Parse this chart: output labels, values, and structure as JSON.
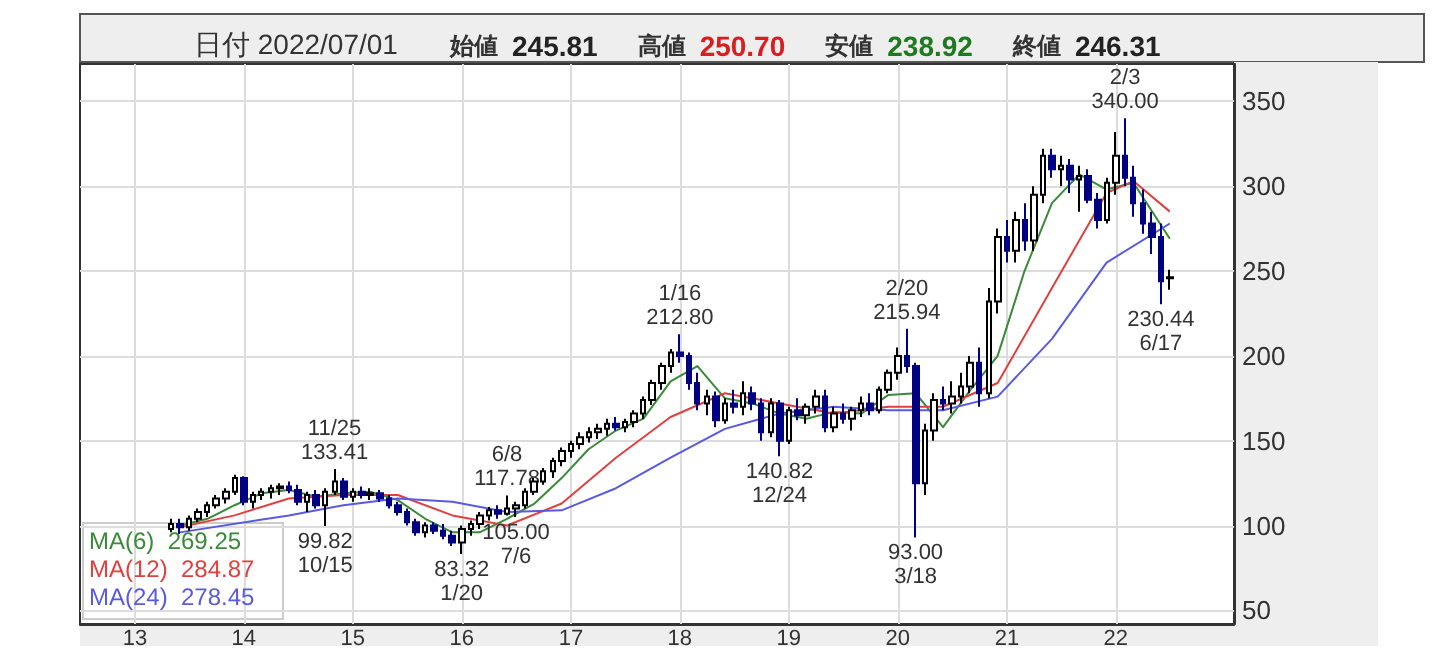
{
  "chart_data": {
    "type": "candlestick",
    "title": "日付 2022/07/01",
    "annotations": [
      "始値 245.81",
      "高値 250.70",
      "安値 238.92",
      "終値 246.31",
      {
        "text": "11/25\n133.41",
        "x": "2014-11",
        "y": 133.41
      },
      {
        "text": "99.82\n10/15",
        "x": "2014-10",
        "y": 99.82
      },
      {
        "text": "83.32\n1/20",
        "x": "2016-01",
        "y": 83.32
      },
      {
        "text": "6/8\n117.78",
        "x": "2016-06",
        "y": 117.78
      },
      {
        "text": "105.00\n7/6",
        "x": "2016-07",
        "y": 105.0
      },
      {
        "text": "1/16\n212.80",
        "x": "2018-01",
        "y": 212.8
      },
      {
        "text": "140.82\n12/24",
        "x": "2018-12",
        "y": 140.82
      },
      {
        "text": "2/20\n215.94",
        "x": "2020-02",
        "y": 215.94
      },
      {
        "text": "93.00\n3/18",
        "x": "2020-03",
        "y": 93.0
      },
      {
        "text": "2/3\n340.00",
        "x": "2022-02",
        "y": 340.0
      },
      {
        "text": "230.44\n6/17",
        "x": "2022-06",
        "y": 230.44
      }
    ],
    "x": [
      "2013-05",
      "2013-06",
      "2013-07",
      "2013-08",
      "2013-09",
      "2013-10",
      "2013-11",
      "2013-12",
      "2014-01",
      "2014-02",
      "2014-03",
      "2014-04",
      "2014-05",
      "2014-06",
      "2014-07",
      "2014-08",
      "2014-09",
      "2014-10",
      "2014-11",
      "2014-12",
      "2015-01",
      "2015-02",
      "2015-03",
      "2015-04",
      "2015-05",
      "2015-06",
      "2015-07",
      "2015-08",
      "2015-09",
      "2015-10",
      "2015-11",
      "2015-12",
      "2016-01",
      "2016-02",
      "2016-03",
      "2016-04",
      "2016-05",
      "2016-06",
      "2016-07",
      "2016-08",
      "2016-09",
      "2016-10",
      "2016-11",
      "2016-12",
      "2017-01",
      "2017-02",
      "2017-03",
      "2017-04",
      "2017-05",
      "2017-06",
      "2017-07",
      "2017-08",
      "2017-09",
      "2017-10",
      "2017-11",
      "2017-12",
      "2018-01",
      "2018-02",
      "2018-03",
      "2018-04",
      "2018-05",
      "2018-06",
      "2018-07",
      "2018-08",
      "2018-09",
      "2018-10",
      "2018-11",
      "2018-12",
      "2019-01",
      "2019-02",
      "2019-03",
      "2019-04",
      "2019-05",
      "2019-06",
      "2019-07",
      "2019-08",
      "2019-09",
      "2019-10",
      "2019-11",
      "2019-12",
      "2020-01",
      "2020-02",
      "2020-03",
      "2020-04",
      "2020-05",
      "2020-06",
      "2020-07",
      "2020-08",
      "2020-09",
      "2020-10",
      "2020-11",
      "2020-12",
      "2021-01",
      "2021-02",
      "2021-03",
      "2021-04",
      "2021-05",
      "2021-06",
      "2021-07",
      "2021-08",
      "2021-09",
      "2021-10",
      "2021-11",
      "2021-12",
      "2022-01",
      "2022-02",
      "2022-03",
      "2022-04",
      "2022-05",
      "2022-06",
      "2022-07"
    ],
    "ohlc": [
      [
        98,
        104,
        96,
        101
      ],
      [
        101,
        104,
        95,
        99
      ],
      [
        99,
        106,
        97,
        104
      ],
      [
        104,
        110,
        102,
        108
      ],
      [
        108,
        114,
        105,
        112
      ],
      [
        112,
        118,
        110,
        116
      ],
      [
        116,
        122,
        113,
        120
      ],
      [
        120,
        130,
        118,
        128
      ],
      [
        128,
        129,
        112,
        114
      ],
      [
        114,
        120,
        110,
        118
      ],
      [
        118,
        122,
        115,
        120
      ],
      [
        120,
        124,
        116,
        122
      ],
      [
        122,
        125,
        118,
        123
      ],
      [
        123,
        126,
        119,
        121
      ],
      [
        121,
        124,
        112,
        114
      ],
      [
        114,
        120,
        108,
        118
      ],
      [
        118,
        121,
        110,
        112
      ],
      [
        112,
        122,
        99.82,
        120
      ],
      [
        120,
        133.41,
        118,
        126
      ],
      [
        126,
        128,
        115,
        117
      ],
      [
        117,
        122,
        114,
        120
      ],
      [
        120,
        123,
        116,
        118
      ],
      [
        118,
        122,
        115,
        119
      ],
      [
        119,
        121,
        114,
        116
      ],
      [
        116,
        118,
        110,
        112
      ],
      [
        112,
        114,
        106,
        108
      ],
      [
        108,
        110,
        100,
        102
      ],
      [
        102,
        104,
        94,
        96
      ],
      [
        96,
        102,
        93,
        100
      ],
      [
        100,
        102,
        95,
        97
      ],
      [
        97,
        101,
        92,
        94
      ],
      [
        94,
        97,
        88,
        90
      ],
      [
        90,
        100,
        83.32,
        98
      ],
      [
        98,
        103,
        94,
        101
      ],
      [
        101,
        108,
        98,
        106
      ],
      [
        106,
        111,
        103,
        109
      ],
      [
        109,
        112,
        104,
        107
      ],
      [
        107,
        117.78,
        106,
        110
      ],
      [
        110,
        114,
        105.0,
        112
      ],
      [
        112,
        122,
        110,
        120
      ],
      [
        120,
        128,
        118,
        126
      ],
      [
        126,
        134,
        124,
        132
      ],
      [
        132,
        140,
        128,
        138
      ],
      [
        138,
        146,
        135,
        144
      ],
      [
        144,
        150,
        140,
        148
      ],
      [
        148,
        155,
        145,
        152
      ],
      [
        152,
        158,
        149,
        155
      ],
      [
        155,
        160,
        151,
        157
      ],
      [
        157,
        163,
        153,
        160
      ],
      [
        160,
        164,
        156,
        158
      ],
      [
        158,
        163,
        155,
        161
      ],
      [
        161,
        168,
        158,
        166
      ],
      [
        166,
        176,
        163,
        174
      ],
      [
        174,
        186,
        171,
        184
      ],
      [
        184,
        196,
        180,
        194
      ],
      [
        194,
        204,
        190,
        202
      ],
      [
        202,
        212.8,
        196,
        200
      ],
      [
        200,
        202,
        180,
        184
      ],
      [
        184,
        190,
        168,
        172
      ],
      [
        172,
        180,
        165,
        176
      ],
      [
        176,
        179,
        158,
        162
      ],
      [
        162,
        175,
        160,
        172
      ],
      [
        172,
        180,
        166,
        170
      ],
      [
        170,
        185,
        165,
        178
      ],
      [
        178,
        182,
        168,
        172
      ],
      [
        172,
        175,
        150,
        155
      ],
      [
        155,
        175,
        152,
        172
      ],
      [
        172,
        174,
        140.82,
        150
      ],
      [
        150,
        170,
        148,
        168
      ],
      [
        168,
        175,
        162,
        165
      ],
      [
        165,
        172,
        160,
        170
      ],
      [
        170,
        180,
        166,
        176
      ],
      [
        176,
        180,
        155,
        158
      ],
      [
        158,
        170,
        155,
        166
      ],
      [
        166,
        172,
        160,
        163
      ],
      [
        163,
        170,
        156,
        168
      ],
      [
        168,
        176,
        164,
        172
      ],
      [
        172,
        178,
        165,
        168
      ],
      [
        168,
        182,
        166,
        180
      ],
      [
        180,
        192,
        178,
        190
      ],
      [
        190,
        205,
        186,
        200
      ],
      [
        200,
        215.94,
        190,
        194
      ],
      [
        194,
        196,
        93.0,
        125
      ],
      [
        125,
        160,
        118,
        156
      ],
      [
        156,
        178,
        150,
        174
      ],
      [
        174,
        182,
        168,
        172
      ],
      [
        172,
        185,
        166,
        176
      ],
      [
        176,
        190,
        172,
        182
      ],
      [
        182,
        200,
        178,
        196
      ],
      [
        196,
        205,
        170,
        178
      ],
      [
        178,
        240,
        175,
        232
      ],
      [
        232,
        275,
        225,
        270
      ],
      [
        270,
        280,
        255,
        262
      ],
      [
        262,
        285,
        255,
        280
      ],
      [
        280,
        290,
        262,
        268
      ],
      [
        268,
        300,
        262,
        295
      ],
      [
        295,
        322,
        290,
        318
      ],
      [
        318,
        322,
        305,
        310
      ],
      [
        310,
        318,
        300,
        312
      ],
      [
        312,
        316,
        296,
        304
      ],
      [
        304,
        312,
        285,
        306
      ],
      [
        306,
        310,
        290,
        292
      ],
      [
        292,
        296,
        275,
        280
      ],
      [
        280,
        305,
        278,
        302
      ],
      [
        302,
        332,
        295,
        318
      ],
      [
        318,
        340.0,
        300,
        305
      ],
      [
        305,
        312,
        282,
        290
      ],
      [
        290,
        298,
        272,
        278
      ],
      [
        278,
        285,
        260,
        270
      ],
      [
        270,
        278,
        230.44,
        244
      ],
      [
        245.81,
        250.7,
        238.92,
        246.31
      ]
    ],
    "colors": [
      "#ffffff",
      "#000080",
      "#ffffff",
      "#ffffff",
      "#ffffff",
      "#ffffff",
      "#ffffff",
      "#ffffff",
      "#000080",
      "#ffffff",
      "#ffffff",
      "#ffffff",
      "#ffffff",
      "#000080",
      "#000080",
      "#ffffff",
      "#000080",
      "#ffffff",
      "#ffffff",
      "#000080",
      "#ffffff",
      "#000080",
      "#ffffff",
      "#000080",
      "#000080",
      "#000080",
      "#000080",
      "#000080",
      "#ffffff",
      "#000080",
      "#000080",
      "#000080",
      "#ffffff",
      "#ffffff",
      "#ffffff",
      "#ffffff",
      "#000080",
      "#ffffff",
      "#ffffff",
      "#ffffff",
      "#ffffff",
      "#ffffff",
      "#ffffff",
      "#ffffff",
      "#ffffff",
      "#ffffff",
      "#ffffff",
      "#ffffff",
      "#ffffff",
      "#000080",
      "#ffffff",
      "#ffffff",
      "#ffffff",
      "#ffffff",
      "#ffffff",
      "#ffffff",
      "#000080",
      "#000080",
      "#000080",
      "#ffffff",
      "#000080",
      "#ffffff",
      "#000080",
      "#ffffff",
      "#000080",
      "#000080",
      "#ffffff",
      "#000080",
      "#ffffff",
      "#000080",
      "#ffffff",
      "#ffffff",
      "#000080",
      "#ffffff",
      "#000080",
      "#ffffff",
      "#ffffff",
      "#000080",
      "#ffffff",
      "#ffffff",
      "#ffffff",
      "#000080",
      "#000080",
      "#ffffff",
      "#ffffff",
      "#000080",
      "#ffffff",
      "#ffffff",
      "#ffffff",
      "#000080",
      "#ffffff",
      "#ffffff",
      "#000080",
      "#ffffff",
      "#000080",
      "#ffffff",
      "#ffffff",
      "#000080",
      "#ffffff",
      "#000080",
      "#ffffff",
      "#000080",
      "#000080",
      "#ffffff",
      "#ffffff",
      "#000080",
      "#000080",
      "#000080",
      "#000080",
      "#000080",
      "#ffffff"
    ],
    "series": [
      {
        "name": "MA(6)  269.25",
        "type": "line",
        "color": "#3a8a3a",
        "x": [
          "2013-06",
          "2013-09",
          "2013-12",
          "2014-03",
          "2014-06",
          "2014-09",
          "2014-12",
          "2015-03",
          "2015-06",
          "2015-09",
          "2015-12",
          "2016-03",
          "2016-06",
          "2016-09",
          "2016-12",
          "2017-03",
          "2017-06",
          "2017-09",
          "2017-12",
          "2018-03",
          "2018-06",
          "2018-09",
          "2018-12",
          "2019-03",
          "2019-06",
          "2019-09",
          "2019-12",
          "2020-03",
          "2020-06",
          "2020-09",
          "2020-12",
          "2021-03",
          "2021-06",
          "2021-09",
          "2021-12",
          "2022-03",
          "2022-07"
        ],
        "values": [
          100,
          104,
          112,
          119,
          121,
          117,
          119,
          120,
          115,
          104,
          96,
          96,
          104,
          113,
          128,
          145,
          156,
          163,
          185,
          194,
          175,
          172,
          166,
          163,
          167,
          166,
          177,
          178,
          158,
          180,
          200,
          250,
          290,
          307,
          298,
          302,
          269
        ]
      },
      {
        "name": "MA(12)  284.87",
        "type": "line",
        "color": "#e04040",
        "x": [
          "2013-06",
          "2013-12",
          "2014-06",
          "2014-12",
          "2015-06",
          "2015-12",
          "2016-06",
          "2016-12",
          "2017-06",
          "2017-12",
          "2018-06",
          "2018-12",
          "2019-06",
          "2019-12",
          "2020-06",
          "2020-12",
          "2021-06",
          "2021-12",
          "2022-03",
          "2022-07"
        ],
        "values": [
          99,
          106,
          116,
          118,
          118,
          106,
          100,
          113,
          140,
          164,
          178,
          172,
          166,
          170,
          170,
          184,
          240,
          296,
          303,
          285
        ]
      },
      {
        "name": "MA(24)  278.45",
        "type": "line",
        "color": "#5a5ae0",
        "x": [
          "2013-06",
          "2014-06",
          "2014-12",
          "2015-06",
          "2015-12",
          "2016-06",
          "2016-12",
          "2017-06",
          "2017-12",
          "2018-06",
          "2018-12",
          "2019-06",
          "2019-12",
          "2020-06",
          "2020-12",
          "2021-06",
          "2021-12",
          "2022-07"
        ],
        "values": [
          96,
          106,
          112,
          116,
          114,
          108,
          109,
          122,
          140,
          157,
          166,
          170,
          168,
          168,
          176,
          210,
          255,
          278
        ]
      }
    ],
    "xlim": [
      "2012-07",
      "2023-02"
    ],
    "xticks": [
      {
        "value": "2013-01",
        "label": "13"
      },
      {
        "value": "2014-01",
        "label": "14"
      },
      {
        "value": "2015-01",
        "label": "15"
      },
      {
        "value": "2016-01",
        "label": "16"
      },
      {
        "value": "2017-01",
        "label": "17"
      },
      {
        "value": "2018-01",
        "label": "18"
      },
      {
        "value": "2019-01",
        "label": "19"
      },
      {
        "value": "2020-01",
        "label": "20"
      },
      {
        "value": "2021-01",
        "label": "21"
      },
      {
        "value": "2022-01",
        "label": "22"
      }
    ],
    "ylim": [
      42,
      372
    ],
    "yticks": [
      50,
      100,
      150,
      200,
      250,
      300,
      350
    ],
    "grid": true
  }
}
